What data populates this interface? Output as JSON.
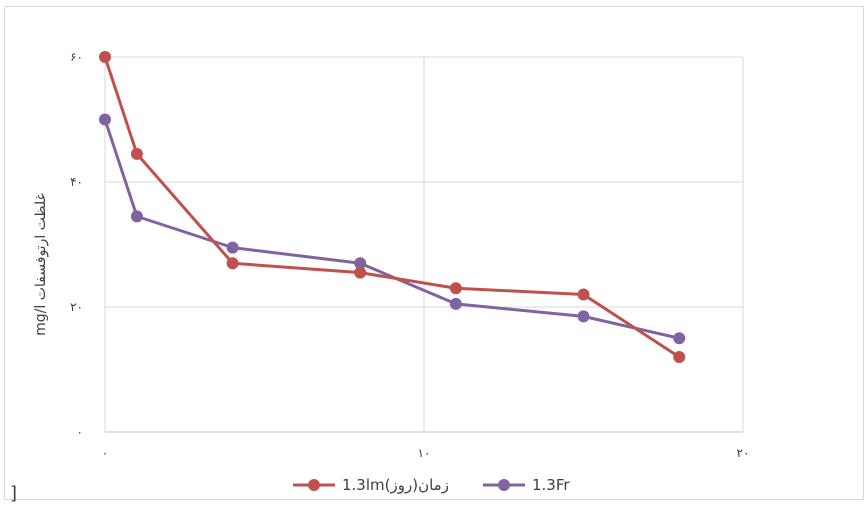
{
  "chart_data": {
    "type": "line",
    "title": "",
    "xlabel": "",
    "ylabel": "mg/l غلظت ارتوفسفات",
    "xlim": [
      0,
      20
    ],
    "ylim": [
      0,
      60
    ],
    "x_ticks": [
      "۰",
      "۱۰",
      "۲۰"
    ],
    "y_ticks": [
      "۰",
      "۲۰",
      "۴۰",
      "۶۰"
    ],
    "grid": true,
    "legend_position": "bottom",
    "legend_text": "1.3lm(زمان(روز",
    "series": [
      {
        "name": "1.3lm",
        "color": "#c0504d",
        "x": [
          0,
          1,
          4,
          8,
          11,
          15,
          18
        ],
        "y": [
          60,
          44.5,
          27,
          25.5,
          23,
          22,
          12
        ]
      },
      {
        "name": "1.3Fr",
        "color": "#8064a2",
        "x": [
          0,
          1,
          4,
          8,
          11,
          15,
          18
        ],
        "y": [
          50,
          34.5,
          29.5,
          27,
          20.5,
          18.5,
          15
        ]
      }
    ]
  },
  "stray_mark": "]"
}
